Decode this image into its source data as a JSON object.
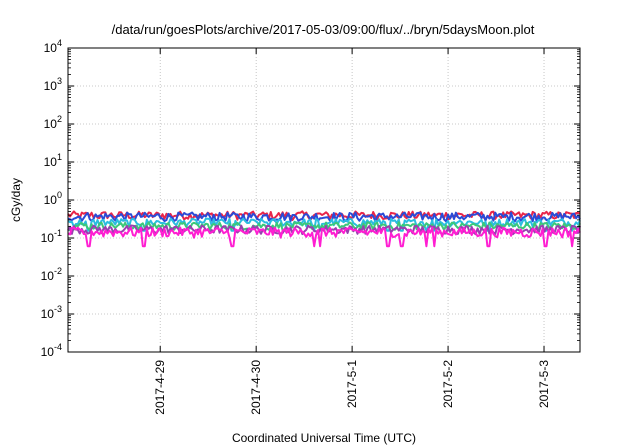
{
  "chart_data": {
    "type": "line",
    "title": "/data/run/goesPlots/archive/2017-05-03/09:00/flux/../bryn/5daysMoon.plot",
    "xlabel": "Coordinated Universal Time (UTC)",
    "ylabel": "cGy/day",
    "y_scale": "log",
    "ylim": [
      0.0001,
      10000
    ],
    "y_ticks": [
      {
        "value": 0.0001,
        "base": "10",
        "exp": "-4"
      },
      {
        "value": 0.001,
        "base": "10",
        "exp": "-3"
      },
      {
        "value": 0.01,
        "base": "10",
        "exp": "-2"
      },
      {
        "value": 0.1,
        "base": "10",
        "exp": "-1"
      },
      {
        "value": 1,
        "base": "10",
        "exp": "0"
      },
      {
        "value": 10,
        "base": "10",
        "exp": "1"
      },
      {
        "value": 100,
        "base": "10",
        "exp": "2"
      },
      {
        "value": 1000,
        "base": "10",
        "exp": "3"
      },
      {
        "value": 10000,
        "base": "10",
        "exp": "4"
      }
    ],
    "xlim": [
      "2017-04-28 00:56",
      "2017-05-03 09:00"
    ],
    "x_ticks": [
      "2017-4-29",
      "2017-4-30",
      "2017-5-1",
      "2017-5-2",
      "2017-5-3"
    ],
    "grid": true,
    "series": [
      {
        "color": "#e8254a",
        "level": 0.4,
        "noise": 0.08,
        "dips": false
      },
      {
        "color": "#2a4bd7",
        "level": 0.37,
        "noise": 0.08,
        "dips": false
      },
      {
        "color": "#2bbde0",
        "level": 0.26,
        "noise": 0.05,
        "dips": true
      },
      {
        "color": "#3cc87a",
        "level": 0.21,
        "noise": 0.04,
        "dips": false
      },
      {
        "color": "#9a3fb0",
        "level": 0.17,
        "noise": 0.035,
        "dips": false
      },
      {
        "color": "#ff1ed2",
        "level": 0.145,
        "noise": 0.035,
        "dips": true
      }
    ],
    "dip_dates": [
      "2017-04-28 06:00",
      "2017-04-28 20:00",
      "2017-04-29 18:00",
      "2017-04-30 14:30",
      "2017-04-30 16:00",
      "2017-05-01 09:00",
      "2017-05-01 12:30",
      "2017-05-01 18:30",
      "2017-05-01 20:30",
      "2017-05-02 10:00",
      "2017-05-03 00:30",
      "2017-05-03 07:00"
    ]
  }
}
